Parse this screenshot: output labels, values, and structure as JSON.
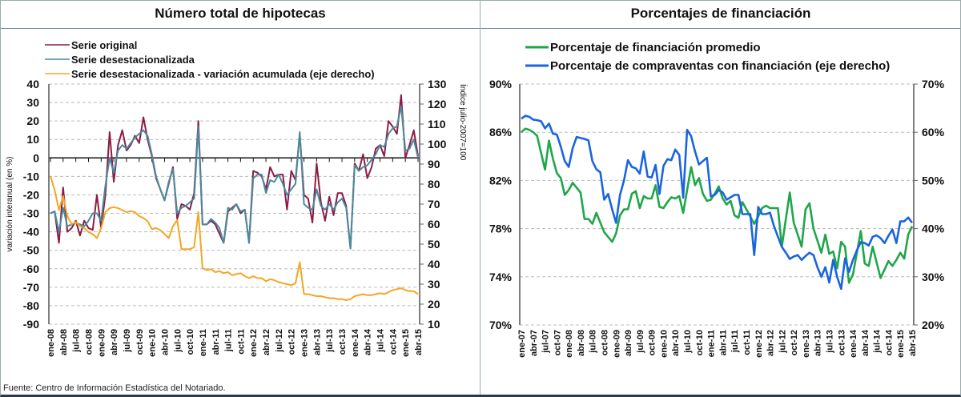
{
  "titles": {
    "left": "Número total de hipotecas",
    "right": "Porcentajes de financiación"
  },
  "footer": "Fuente: Centro de Información Estadística del Notariado.",
  "chart_data": [
    {
      "type": "line",
      "title": "Número total de hipotecas",
      "ylabel": "variación interanual (en %)",
      "ylabel_right": "Índice julio-2007=100",
      "ylim": [
        -90,
        40
      ],
      "yticks": [
        "40",
        "30",
        "20",
        "10",
        "0",
        "-10",
        "-20",
        "-30",
        "-40",
        "-50",
        "-60",
        "-70",
        "-80",
        "-90"
      ],
      "ylim_right": [
        10,
        130
      ],
      "yticks_right": [
        "130",
        "120",
        "110",
        "100",
        "90",
        "80",
        "70",
        "60",
        "50",
        "40",
        "30",
        "20",
        "10"
      ],
      "grid": true,
      "legend": "top-left",
      "x_start": "ene-08",
      "months": 88,
      "xticks": [
        "ene-08",
        "abr-08",
        "jul-08",
        "oct-08",
        "ene-09",
        "abr-09",
        "jul-09",
        "oct-09",
        "ene-10",
        "abr-10",
        "jul-10",
        "oct-10",
        "ene-11",
        "abr-11",
        "jul-11",
        "oct-11",
        "ene-12",
        "abr-12",
        "jul-12",
        "oct-12",
        "ene-13",
        "abr-13",
        "jul-13",
        "oct-13",
        "ene-14",
        "abr-14",
        "jul-14",
        "oct-14",
        "ene-15",
        "abr-15"
      ],
      "series": [
        {
          "name": "Serie original",
          "color": "#8c1d45",
          "axis": "left",
          "values": [
            -30,
            -29,
            -46,
            -16,
            -40,
            -38,
            -34,
            -42,
            -34,
            -38,
            -39,
            -20,
            -38,
            -20,
            14,
            -13,
            7,
            15,
            4,
            7,
            12,
            8,
            22,
            10,
            1,
            -11,
            -17,
            -23,
            -14,
            -5,
            -33,
            -25,
            -26,
            -28,
            -19,
            20,
            -36,
            -36,
            -34,
            -36,
            -41,
            -46,
            -29,
            -27,
            -25,
            -30,
            -28,
            -46,
            -7,
            -8,
            -10,
            -17,
            -5,
            -10,
            -9,
            -9,
            -28,
            -7,
            -12,
            13,
            -20,
            -22,
            -35,
            -3,
            -24,
            -34,
            -21,
            -31,
            -19,
            -19,
            -26,
            -49,
            -3,
            -7,
            2,
            -11,
            -5,
            5,
            7,
            1,
            20,
            17,
            13,
            34,
            0,
            7,
            15,
            1
          ]
        },
        {
          "name": "Serie desestacionalizada",
          "color": "#4a8a9e",
          "axis": "left",
          "values": [
            -30,
            -29,
            -40,
            -27,
            -37,
            -36,
            -35,
            -36,
            -37,
            -34,
            -30,
            -30,
            -34,
            -15,
            0,
            -8,
            4,
            7,
            5,
            8,
            11,
            13,
            15,
            12,
            2,
            -10,
            -17,
            -23,
            -13,
            -6,
            -30,
            -27,
            -26,
            -24,
            -22,
            17,
            -36,
            -36,
            -33,
            -35,
            -38,
            -46,
            -27,
            -28,
            -25,
            -29,
            -28,
            -46,
            -11,
            -9,
            -9,
            -19,
            -12,
            -13,
            -9,
            -14,
            -20,
            -17,
            -14,
            14,
            -25,
            -27,
            -28,
            -17,
            -26,
            -28,
            -25,
            -28,
            -24,
            -22,
            -27,
            -49,
            -4,
            -7,
            -5,
            -4,
            -1,
            2,
            7,
            6,
            13,
            16,
            17,
            28,
            4,
            5,
            10,
            0
          ]
        },
        {
          "name": "Serie desestacionalizada - variación acumulada (eje derecho)",
          "color": "#f5a623",
          "axis": "right",
          "values": [
            84,
            77,
            67,
            74,
            64,
            60,
            61,
            59,
            58,
            56,
            55,
            53,
            58,
            66,
            68,
            68.5,
            68,
            67,
            66,
            66.5,
            66,
            64,
            63,
            61.5,
            57.5,
            58,
            57,
            55,
            53,
            59,
            62,
            47.5,
            47.5,
            47.5,
            48.5,
            66,
            38,
            37,
            37.5,
            36,
            36.5,
            35.5,
            36,
            34.5,
            35,
            35.5,
            34,
            33,
            34,
            33,
            33,
            31.5,
            32.5,
            32,
            31,
            30.5,
            30,
            29.5,
            30.5,
            41,
            25,
            25,
            24.5,
            24,
            24,
            23.5,
            23,
            23,
            22.5,
            22.5,
            22,
            22.5,
            24,
            24.5,
            25,
            24.5,
            24.5,
            25,
            25.5,
            25,
            26,
            27,
            27.5,
            28,
            27,
            26.5,
            26.5,
            25
          ]
        }
      ]
    },
    {
      "type": "line",
      "title": "Porcentajes de financiación",
      "ylim": [
        70,
        90
      ],
      "yticks": [
        "90%",
        "86%",
        "82%",
        "78%",
        "74%",
        "70%"
      ],
      "ylim_right": [
        20,
        70
      ],
      "yticks_right": [
        "70%",
        "60%",
        "50%",
        "40%",
        "30%",
        "20%"
      ],
      "grid": true,
      "legend": "top-left",
      "x_start": "ene-07",
      "months": 100,
      "xticks": [
        "ene-07",
        "abr-07",
        "jul-07",
        "oct-07",
        "ene-08",
        "abr-08",
        "jul-08",
        "oct-08",
        "ene-09",
        "abr-09",
        "jul-09",
        "oct-09",
        "ene-10",
        "abr-10",
        "jul-10",
        "oct-10",
        "ene-11",
        "abr-11",
        "jul-11",
        "oct-11",
        "ene-12",
        "abr-12",
        "jul-12",
        "oct-12",
        "ene-13",
        "abr-13",
        "jul-13",
        "oct-13",
        "ene-14",
        "abr-14",
        "jul-14",
        "oct-14",
        "ene-15",
        "abr-15"
      ],
      "series": [
        {
          "name": "Porcentaje de financiación promedio",
          "color": "#1fa64a",
          "axis": "left",
          "values": [
            86,
            86.3,
            86.2,
            86,
            85.7,
            84.3,
            82.9,
            85.3,
            83.8,
            82.6,
            82.2,
            80.8,
            81.2,
            81.8,
            81.4,
            81,
            78.8,
            78.8,
            78.4,
            79.3,
            78.5,
            77.7,
            77.3,
            76.9,
            77.6,
            79.1,
            79.6,
            79.6,
            80.9,
            81.1,
            79.7,
            80.7,
            80.5,
            80.5,
            81.6,
            79.8,
            79.7,
            80.2,
            80.6,
            80.5,
            80.7,
            79.3,
            81.2,
            83.1,
            81.6,
            82.2,
            80.9,
            80.3,
            80.4,
            80.9,
            81.5,
            80.5,
            80,
            80.3,
            79.1,
            78.9,
            80.2,
            79.6,
            79,
            78.4,
            79,
            79.7,
            79.9,
            79.7,
            79.7,
            79.7,
            76.5,
            78.8,
            81,
            78.5,
            77.5,
            76.5,
            79.6,
            80.1,
            78,
            77,
            76,
            77.5,
            75.9,
            76.1,
            74.7,
            76.9,
            76.5,
            73.5,
            74.2,
            76,
            77.8,
            75.1,
            74.9,
            76.5,
            75.2,
            73.9,
            74.6,
            75.3,
            74.9,
            75.4,
            76,
            75.5,
            77.5,
            78.2
          ]
        },
        {
          "name": "Porcentaje de compraventas con financiación (eje derecho)",
          "color": "#1a64e0",
          "axis": "right",
          "values": [
            62.8,
            63.4,
            63.2,
            62.6,
            62.5,
            62.3,
            60.8,
            61.8,
            59.7,
            59.5,
            57,
            54,
            52.8,
            56.7,
            59,
            58.8,
            58.6,
            58.3,
            54,
            52.3,
            51.7,
            46,
            47.2,
            44,
            41.2,
            47,
            50,
            54.2,
            52.8,
            52.5,
            51.4,
            56,
            50.8,
            50.6,
            53.2,
            47.2,
            53,
            54.4,
            54.2,
            56.4,
            55.3,
            46.4,
            60.5,
            59.2,
            56,
            53.3,
            54,
            54.7,
            46.7,
            47,
            48,
            47.5,
            46,
            46.5,
            47,
            47,
            43,
            43,
            43,
            34.5,
            44.5,
            43,
            43,
            43.3,
            40.5,
            38.3,
            36.2,
            35,
            33.7,
            34.2,
            34.5,
            33.5,
            34.3,
            35,
            34.5,
            32,
            30,
            32,
            28.8,
            33.5,
            30,
            27.5,
            33.8,
            31,
            33.5,
            35.5,
            37.2,
            37,
            36.5,
            38.3,
            38.6,
            38,
            37,
            38.5,
            39.8,
            37,
            41.5,
            41.5,
            42.3,
            41.2
          ]
        }
      ]
    }
  ]
}
